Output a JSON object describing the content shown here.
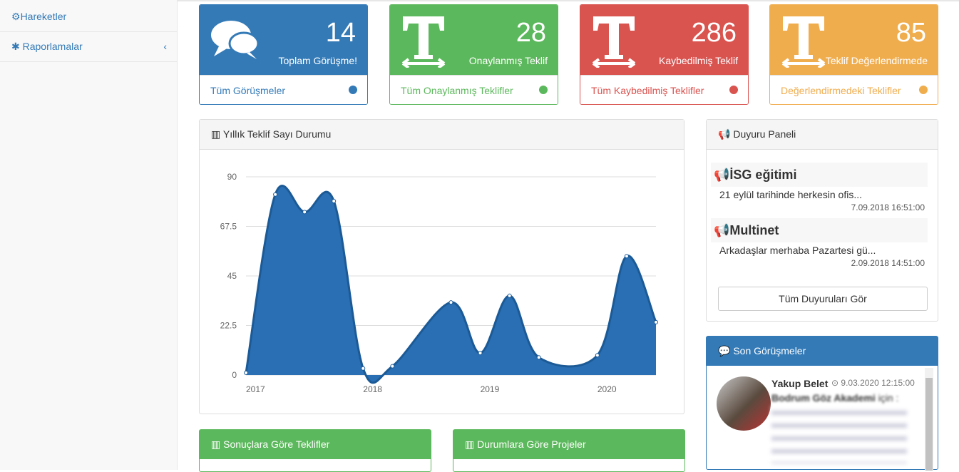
{
  "sidebar": {
    "items": [
      "Hareketler",
      "Raporlamalar"
    ]
  },
  "cards": [
    {
      "number": "14",
      "label": "Toplam Görüşme!",
      "link": "Tüm Görüşmeler"
    },
    {
      "number": "28",
      "label": "Onaylanmış Teklif",
      "link": "Tüm Onaylanmış Teklifler"
    },
    {
      "number": "286",
      "label": "Kaybedilmiş Teklif",
      "link": "Tüm Kaybedilmiş Teklifler"
    },
    {
      "number": "85",
      "label": "Teklif Değerlendirmede",
      "link": "Değerlendirmedeki Teklifler"
    }
  ],
  "chart_data": {
    "type": "area",
    "title": "Yıllık Teklif Sayı Durumu",
    "x": [
      2017,
      2017.25,
      2017.5,
      2017.75,
      2018,
      2018.25,
      2018.75,
      2019,
      2019.25,
      2019.5,
      2020,
      2020.25,
      2020.5
    ],
    "series": [
      {
        "name": "Teklif",
        "color": "#2a6fb3",
        "values": [
          1,
          82,
          74,
          79,
          3,
          4,
          33,
          10,
          36,
          8,
          9,
          54,
          24
        ]
      }
    ],
    "xlim": [
      2017,
      2020.5
    ],
    "xticks": [
      2017,
      2018,
      2019,
      2020
    ],
    "ylim": [
      0,
      90
    ],
    "yticks": [
      0,
      22.5,
      45,
      67.5,
      90
    ],
    "grid": true
  },
  "announcements": {
    "title": "Duyuru Paneli",
    "items": [
      {
        "heading": "İSG eğitimi",
        "text": "21 eylül tarihinde herkesin ofis...",
        "date": "7.09.2018 16:51:00"
      },
      {
        "heading": "Multinet",
        "text": "Arkadaşlar merhaba Pazartesi gü...",
        "date": "2.09.2018 14:51:00"
      }
    ],
    "button": "Tüm Duyuruları Gör"
  },
  "recent": {
    "title": "Son Görüşmeler",
    "author": "Yakup Belet",
    "date": "9.03.2020 12:15:00",
    "company": "Bodrum Göz Akademi",
    "suffix": "için :"
  },
  "bottom_panels": [
    "Sonuçlara Göre Teklifler",
    "Durumlara Göre Projeler"
  ]
}
